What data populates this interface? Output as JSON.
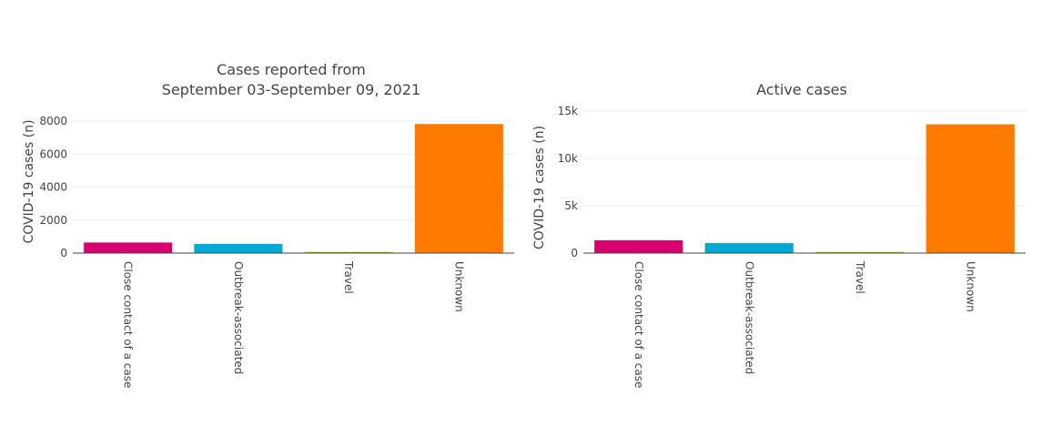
{
  "chart_data": [
    {
      "type": "bar",
      "title_lines": [
        "Cases reported from",
        "September 03-September 09, 2021"
      ],
      "ylabel": "COVID-19 cases (n)",
      "xlabel": "",
      "categories": [
        "Close contact of a case",
        "Outbreak-associated",
        "Travel",
        "Unknown"
      ],
      "values": [
        640,
        560,
        70,
        7820
      ],
      "colors": [
        "#d6006e",
        "#00a8d6",
        "#8fbe1f",
        "#ff7a00"
      ],
      "ylim": [
        0,
        8000
      ],
      "yticks": [
        0,
        2000,
        4000,
        6000,
        8000
      ],
      "ytick_labels": [
        "0",
        "2000",
        "4000",
        "6000",
        "8000"
      ],
      "grid": true,
      "legend": "none"
    },
    {
      "type": "bar",
      "title_lines": [
        "Active cases"
      ],
      "ylabel": "COVID-19 cases (n)",
      "xlabel": "",
      "categories": [
        "Close contact of a case",
        "Outbreak-associated",
        "Travel",
        "Unknown"
      ],
      "values": [
        1350,
        1050,
        120,
        13600
      ],
      "colors": [
        "#d6006e",
        "#00a8d6",
        "#8fbe1f",
        "#ff7a00"
      ],
      "ylim": [
        0,
        15000
      ],
      "yticks": [
        0,
        5000,
        10000,
        15000
      ],
      "ytick_labels": [
        "0",
        "5k",
        "10k",
        "15k"
      ],
      "grid": true,
      "legend": "none"
    }
  ]
}
